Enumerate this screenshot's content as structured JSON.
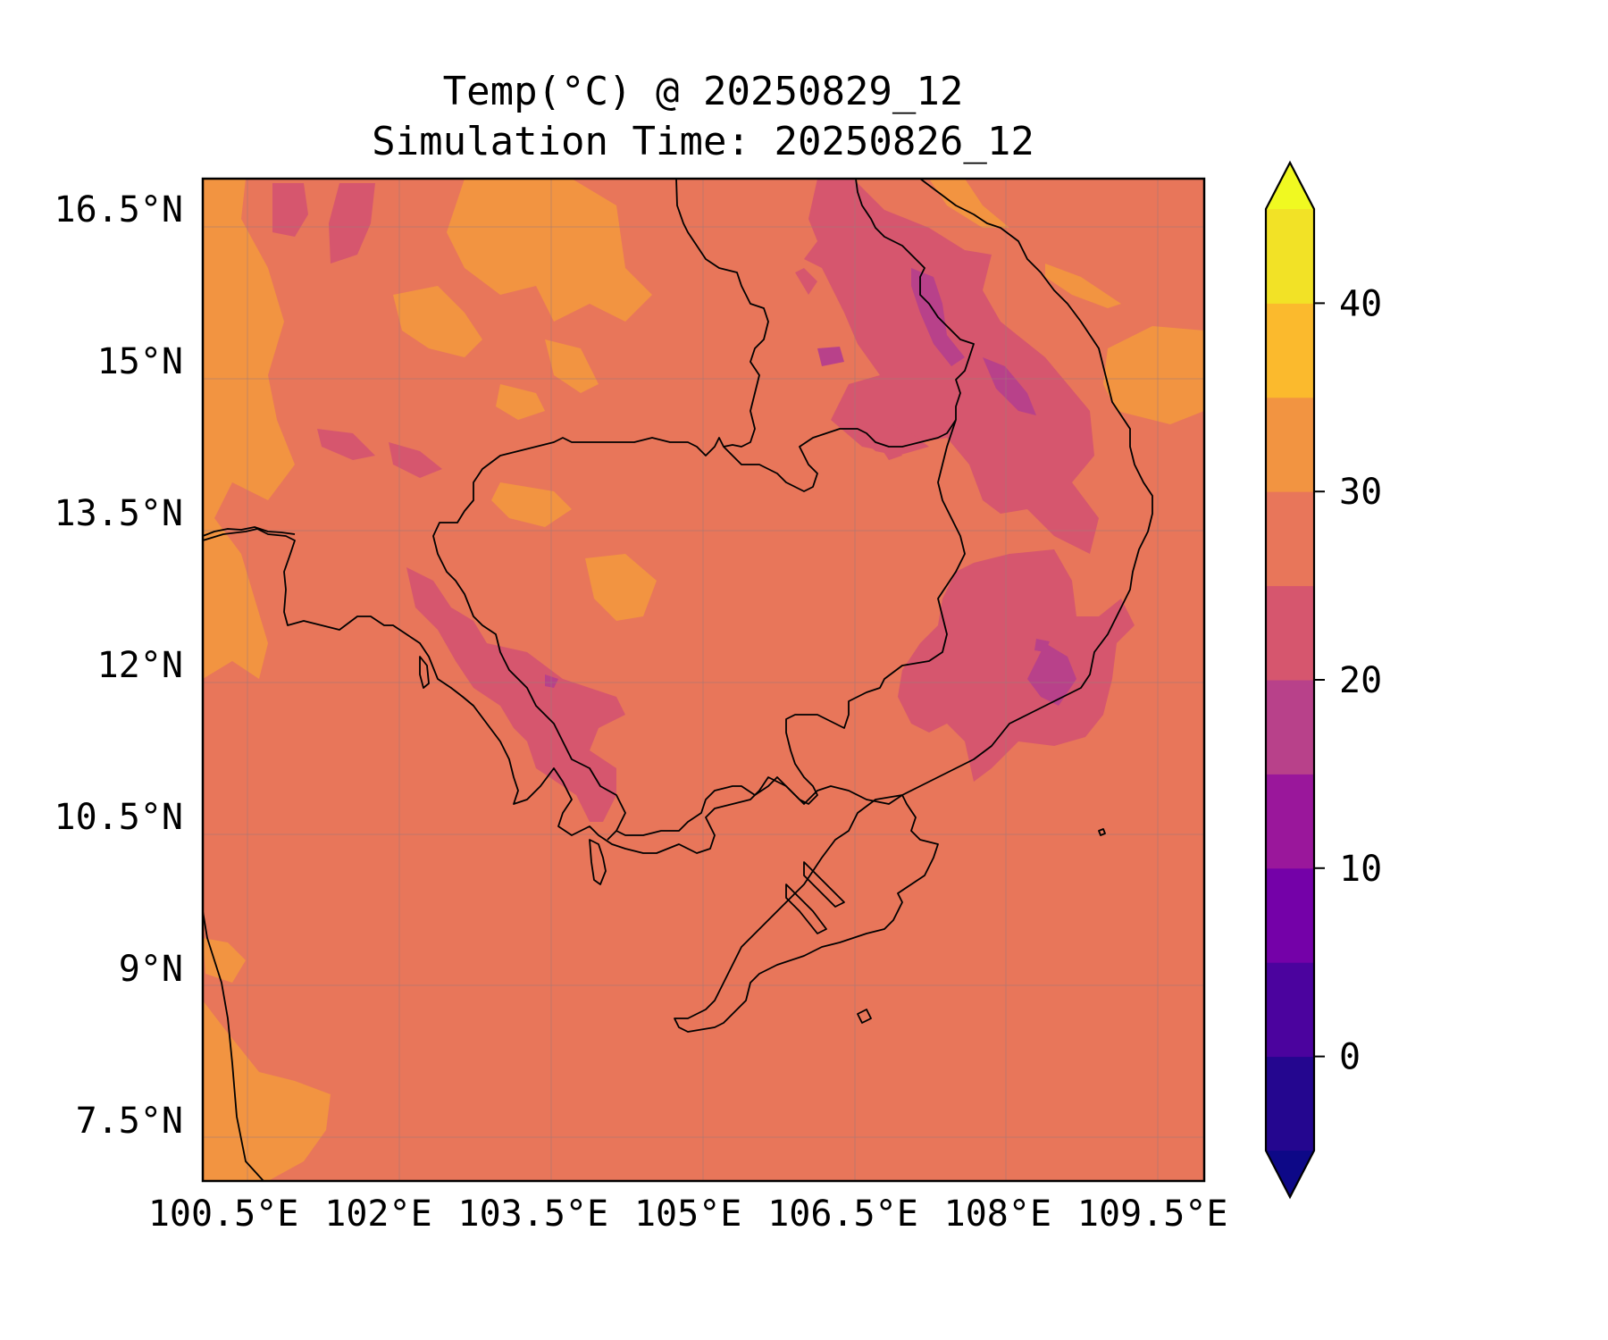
{
  "title": {
    "line1": "Temp(°C) @ 20250829_12",
    "line2": "Simulation Time: 20250826_12"
  },
  "map": {
    "lon_range": [
      100.3,
      110.0
    ],
    "lat_range": [
      6.9,
      16.8
    ],
    "x_ticks": [
      {
        "value": 100.5,
        "label": "100.5°E"
      },
      {
        "value": 102.0,
        "label": "102°E"
      },
      {
        "value": 103.5,
        "label": "103.5°E"
      },
      {
        "value": 105.0,
        "label": "105°E"
      },
      {
        "value": 106.5,
        "label": "106.5°E"
      },
      {
        "value": 108.0,
        "label": "108°E"
      },
      {
        "value": 109.5,
        "label": "109.5°E"
      }
    ],
    "y_ticks": [
      {
        "value": 16.5,
        "label": "16.5°N"
      },
      {
        "value": 15.0,
        "label": "15°N"
      },
      {
        "value": 13.5,
        "label": "13.5°N"
      },
      {
        "value": 12.0,
        "label": "12°N"
      },
      {
        "value": 10.5,
        "label": "10.5°N"
      },
      {
        "value": 9.0,
        "label": "9°N"
      },
      {
        "value": 7.5,
        "label": "7.5°N"
      }
    ],
    "gridlines": true,
    "background_level_color": "#e8765a",
    "level_colors": {
      "20_25": "#d6566e",
      "15_20": "#b8418a",
      "30_35": "#f29441"
    }
  },
  "colorbar": {
    "levels": [
      -5,
      0,
      5,
      10,
      15,
      20,
      25,
      30,
      35,
      40,
      45
    ],
    "colors": [
      "#24068f",
      "#4b039e",
      "#7401a8",
      "#9a179b",
      "#b8418a",
      "#d6566e",
      "#e8765a",
      "#f29441",
      "#fbba2d",
      "#f2e226"
    ],
    "under_color": "#0d0887",
    "over_color": "#f0f921",
    "extend": "both",
    "ticks": [
      {
        "value": 0,
        "label": "0"
      },
      {
        "value": 10,
        "label": "10"
      },
      {
        "value": 20,
        "label": "20"
      },
      {
        "value": 30,
        "label": "30"
      },
      {
        "value": 40,
        "label": "40"
      }
    ]
  }
}
